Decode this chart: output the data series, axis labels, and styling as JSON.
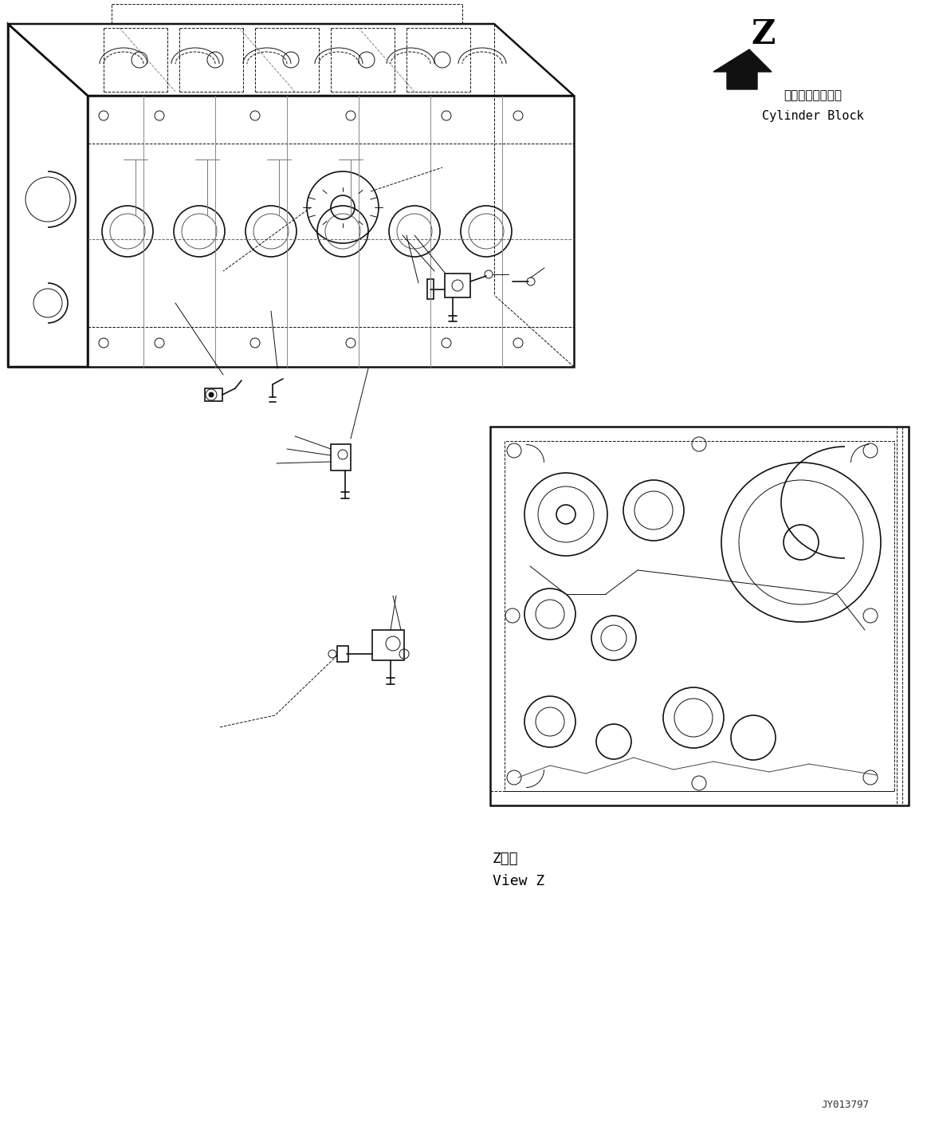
{
  "background_color": "#ffffff",
  "title_text": "JY013797",
  "label_z": "Z",
  "label_view_z_jp": "Z　視",
  "label_view_z_en": "View Z",
  "label_cylinder_jp": "シリンダブロック",
  "label_cylinder_en": "Cylinder Block",
  "fig_width": 11.63,
  "fig_height": 14.12,
  "dpi": 100
}
